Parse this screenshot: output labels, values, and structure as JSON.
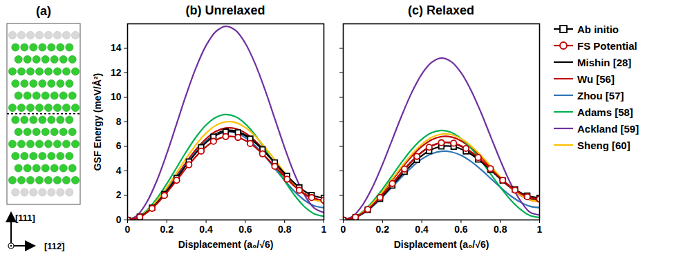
{
  "diagram": {
    "label": "(a)",
    "directions": {
      "vertical": "[111]",
      "horizontal": "[112̅]"
    }
  },
  "chart_data": [
    {
      "type": "line",
      "title": "(b) Unrelaxed",
      "x_label": "Displacement (a₀/√6)",
      "y_label": "GSF Energy (meV/Å²)",
      "xlim": [
        0,
        1
      ],
      "xticks": [
        0,
        0.2,
        0.4,
        0.6,
        0.8,
        1
      ],
      "ylim": [
        0,
        16
      ],
      "yticks": [
        0,
        2,
        4,
        6,
        8,
        10,
        12,
        14
      ],
      "legend": "right",
      "series": [
        {
          "name": "Ab initio",
          "color": "#000000",
          "marker": "square",
          "x": [
            0,
            0.0625,
            0.125,
            0.1875,
            0.25,
            0.3125,
            0.375,
            0.4375,
            0.5,
            0.5625,
            0.625,
            0.6875,
            0.75,
            0.8125,
            0.875,
            0.9375,
            1
          ],
          "values": [
            0,
            0.26,
            0.99,
            2.1,
            3.41,
            4.76,
            5.93,
            6.78,
            7.2,
            7.14,
            6.62,
            5.76,
            4.69,
            3.59,
            2.65,
            2.02,
            1.8
          ]
        },
        {
          "name": "FS Potential",
          "color": "#c00000",
          "marker": "circle",
          "x": [
            0,
            0.0625,
            0.125,
            0.1875,
            0.25,
            0.3125,
            0.375,
            0.4375,
            0.5,
            0.5625,
            0.625,
            0.6875,
            0.75,
            0.8125,
            0.875,
            0.9375,
            1
          ],
          "values": [
            0,
            0.24,
            0.94,
            1.99,
            3.23,
            4.5,
            5.61,
            6.41,
            6.8,
            6.73,
            6.23,
            5.39,
            4.37,
            3.32,
            2.42,
            1.82,
            1.6
          ]
        },
        {
          "name": "Mishin [28]",
          "color": "#000000",
          "x": [
            0,
            0.05,
            0.1,
            0.15,
            0.2,
            0.25,
            0.3,
            0.35,
            0.4,
            0.45,
            0.5,
            0.55,
            0.6,
            0.65,
            0.7,
            0.75,
            0.8,
            0.85,
            0.9,
            0.95,
            1
          ],
          "values": [
            0,
            0.17,
            0.66,
            1.43,
            2.4,
            3.48,
            4.58,
            5.6,
            6.43,
            7.02,
            7.3,
            7.27,
            6.93,
            6.32,
            5.52,
            4.62,
            3.69,
            2.85,
            2.18,
            1.75,
            1.6
          ]
        },
        {
          "name": "Wu [56]",
          "color": "#c00000",
          "x": [
            0,
            0.05,
            0.1,
            0.15,
            0.2,
            0.25,
            0.3,
            0.35,
            0.4,
            0.45,
            0.5,
            0.55,
            0.6,
            0.65,
            0.7,
            0.75,
            0.8,
            0.85,
            0.9,
            0.95,
            1
          ],
          "values": [
            0,
            0.17,
            0.68,
            1.47,
            2.48,
            3.6,
            4.73,
            5.77,
            6.62,
            7.22,
            7.5,
            7.45,
            7.09,
            6.45,
            5.61,
            4.66,
            3.69,
            2.81,
            2.11,
            1.66,
            1.5
          ]
        },
        {
          "name": "Zhou [57]",
          "color": "#2e75b6",
          "x": [
            0,
            0.05,
            0.1,
            0.15,
            0.2,
            0.25,
            0.3,
            0.35,
            0.4,
            0.45,
            0.5,
            0.55,
            0.6,
            0.65,
            0.7,
            0.75,
            0.8,
            0.85,
            0.9,
            0.95,
            1
          ],
          "values": [
            0,
            0.17,
            0.66,
            1.44,
            2.41,
            3.5,
            4.59,
            5.59,
            6.41,
            6.96,
            7.2,
            7.11,
            6.71,
            6.05,
            5.18,
            4.2,
            3.22,
            2.33,
            1.62,
            1.16,
            1.0
          ]
        },
        {
          "name": "Adams [58]",
          "color": "#00b050",
          "x": [
            0,
            0.05,
            0.1,
            0.15,
            0.2,
            0.25,
            0.3,
            0.35,
            0.4,
            0.45,
            0.5,
            0.55,
            0.6,
            0.65,
            0.7,
            0.75,
            0.8,
            0.85,
            0.9,
            0.95,
            1
          ],
          "values": [
            0,
            0.21,
            0.81,
            1.76,
            2.95,
            4.27,
            5.59,
            6.79,
            7.75,
            8.37,
            8.6,
            8.42,
            7.84,
            6.93,
            5.77,
            4.48,
            3.19,
            2.03,
            1.1,
            0.51,
            0.3
          ]
        },
        {
          "name": "Ackland [59]",
          "color": "#7030a0",
          "x": [
            0,
            0.05,
            0.1,
            0.15,
            0.2,
            0.25,
            0.3,
            0.35,
            0.4,
            0.45,
            0.5,
            0.55,
            0.6,
            0.65,
            0.7,
            0.75,
            0.8,
            0.85,
            0.9,
            0.95,
            1
          ],
          "values": [
            0,
            0.38,
            1.5,
            3.23,
            5.41,
            7.84,
            10.27,
            12.47,
            14.23,
            15.37,
            15.8,
            15.47,
            14.41,
            12.74,
            10.62,
            8.26,
            5.9,
            3.76,
            2.07,
            0.98,
            0.6
          ]
        },
        {
          "name": "Sheng [60]",
          "color": "#ffc000",
          "x": [
            0,
            0.05,
            0.1,
            0.15,
            0.2,
            0.25,
            0.3,
            0.35,
            0.4,
            0.45,
            0.5,
            0.55,
            0.6,
            0.65,
            0.7,
            0.75,
            0.8,
            0.85,
            0.9,
            0.95,
            1
          ],
          "values": [
            0,
            0.19,
            0.73,
            1.58,
            2.65,
            3.85,
            5.05,
            6.17,
            7.08,
            7.71,
            8.0,
            7.94,
            7.54,
            6.85,
            5.93,
            4.91,
            3.86,
            2.91,
            2.16,
            1.67,
            1.5
          ]
        }
      ]
    },
    {
      "type": "line",
      "title": "(c) Relaxed",
      "x_label": "Displacement (a₀/√6)",
      "tick_labels": "x",
      "xlim": [
        0,
        1
      ],
      "xticks": [
        0,
        0.2,
        0.4,
        0.6,
        0.8,
        1
      ],
      "ylim": [
        0,
        16
      ],
      "yticks": [
        0,
        2,
        4,
        6,
        8,
        10,
        12,
        14
      ],
      "legend": "right",
      "series": [
        {
          "name": "Ab initio",
          "color": "#000000",
          "marker": "square",
          "x": [
            0,
            0.0625,
            0.125,
            0.1875,
            0.25,
            0.3125,
            0.375,
            0.4375,
            0.5,
            0.5625,
            0.625,
            0.6875,
            0.75,
            0.8125,
            0.875,
            0.9375,
            1
          ],
          "values": [
            0,
            0.21,
            0.82,
            1.73,
            2.81,
            3.93,
            4.91,
            5.63,
            6.0,
            5.98,
            5.6,
            4.93,
            4.09,
            3.22,
            2.48,
            1.98,
            1.8
          ]
        },
        {
          "name": "FS Potential",
          "color": "#c00000",
          "marker": "circle",
          "x": [
            0,
            0.0625,
            0.125,
            0.1875,
            0.25,
            0.3125,
            0.375,
            0.4375,
            0.5,
            0.5625,
            0.625,
            0.6875,
            0.75,
            0.8125,
            0.875,
            0.9375,
            1
          ],
          "values": [
            0,
            0.22,
            0.86,
            1.83,
            2.97,
            4.15,
            5.18,
            5.93,
            6.3,
            6.26,
            5.83,
            5.09,
            4.18,
            3.24,
            2.43,
            1.89,
            1.7
          ]
        },
        {
          "name": "Mishin [28]",
          "color": "#000000",
          "x": [
            0,
            0.05,
            0.1,
            0.15,
            0.2,
            0.25,
            0.3,
            0.35,
            0.4,
            0.45,
            0.5,
            0.55,
            0.6,
            0.65,
            0.7,
            0.75,
            0.8,
            0.85,
            0.9,
            0.95,
            1
          ],
          "values": [
            0,
            0.15,
            0.56,
            1.22,
            2.05,
            2.98,
            3.93,
            4.8,
            5.53,
            6.04,
            6.3,
            6.29,
            6.02,
            5.53,
            4.87,
            4.12,
            3.35,
            2.65,
            2.09,
            1.72,
            1.6
          ]
        },
        {
          "name": "Wu [56]",
          "color": "#c00000",
          "x": [
            0,
            0.05,
            0.1,
            0.15,
            0.2,
            0.25,
            0.3,
            0.35,
            0.4,
            0.45,
            0.5,
            0.55,
            0.6,
            0.65,
            0.7,
            0.75,
            0.8,
            0.85,
            0.9,
            0.95,
            1
          ],
          "values": [
            0,
            0.16,
            0.62,
            1.33,
            2.23,
            3.25,
            4.27,
            5.21,
            5.99,
            6.54,
            6.8,
            6.77,
            6.45,
            5.89,
            5.15,
            4.31,
            3.45,
            2.67,
            2.04,
            1.64,
            1.5
          ]
        },
        {
          "name": "Zhou [57]",
          "color": "#2e75b6",
          "x": [
            0,
            0.05,
            0.1,
            0.15,
            0.2,
            0.25,
            0.3,
            0.35,
            0.4,
            0.45,
            0.5,
            0.55,
            0.6,
            0.65,
            0.7,
            0.75,
            0.8,
            0.85,
            0.9,
            0.95,
            1
          ],
          "values": [
            0,
            0.13,
            0.51,
            1.11,
            1.86,
            2.7,
            3.54,
            4.32,
            4.96,
            5.4,
            5.6,
            5.55,
            5.27,
            4.78,
            4.13,
            3.4,
            2.67,
            2.0,
            1.47,
            1.12,
            1.0
          ]
        },
        {
          "name": "Adams [58]",
          "color": "#00b050",
          "x": [
            0,
            0.05,
            0.1,
            0.15,
            0.2,
            0.25,
            0.3,
            0.35,
            0.4,
            0.45,
            0.5,
            0.55,
            0.6,
            0.65,
            0.7,
            0.75,
            0.8,
            0.85,
            0.9,
            0.95,
            1
          ],
          "values": [
            0,
            0.18,
            0.69,
            1.5,
            2.51,
            3.63,
            4.75,
            5.77,
            6.58,
            7.11,
            7.3,
            7.14,
            6.64,
            5.86,
            4.87,
            3.77,
            2.67,
            1.68,
            0.9,
            0.37,
            0.2
          ]
        },
        {
          "name": "Ackland [59]",
          "color": "#7030a0",
          "x": [
            0,
            0.05,
            0.1,
            0.15,
            0.2,
            0.25,
            0.3,
            0.35,
            0.4,
            0.45,
            0.5,
            0.55,
            0.6,
            0.65,
            0.7,
            0.75,
            0.8,
            0.85,
            0.9,
            0.95,
            1
          ],
          "values": [
            0,
            0.32,
            1.25,
            2.7,
            4.53,
            6.56,
            8.59,
            10.43,
            11.9,
            12.85,
            13.2,
            12.91,
            12.02,
            10.61,
            8.83,
            6.84,
            4.87,
            3.06,
            1.63,
            0.64,
            0.4
          ]
        },
        {
          "name": "Sheng [60]",
          "color": "#ffc000",
          "x": [
            0,
            0.05,
            0.1,
            0.15,
            0.2,
            0.25,
            0.3,
            0.35,
            0.4,
            0.45,
            0.5,
            0.55,
            0.6,
            0.65,
            0.7,
            0.75,
            0.8,
            0.85,
            0.9,
            0.95,
            1
          ],
          "values": [
            0,
            0.16,
            0.63,
            1.37,
            2.3,
            3.35,
            4.4,
            5.37,
            6.17,
            6.73,
            7.0,
            6.96,
            6.63,
            6.05,
            5.28,
            4.41,
            3.51,
            2.71,
            2.06,
            1.64,
            1.5
          ]
        }
      ]
    }
  ]
}
